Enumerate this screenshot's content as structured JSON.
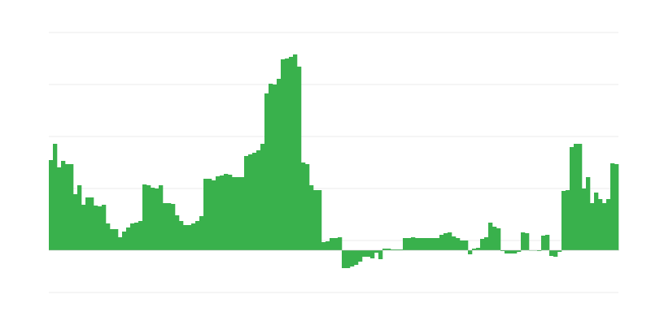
{
  "chart_data": {
    "type": "bar",
    "title": "",
    "xlabel": "",
    "ylabel": "",
    "grid": true,
    "ylim": [
      -52,
      268
    ],
    "gridlines": [
      -52,
      12,
      76,
      140,
      204,
      268
    ],
    "color": "#39b14c",
    "grid_color": "#ebebeb",
    "values": [
      111,
      131,
      102,
      110,
      106,
      106,
      69,
      80,
      56,
      65,
      65,
      55,
      54,
      56,
      33,
      26,
      26,
      16,
      23,
      28,
      33,
      34,
      36,
      81,
      80,
      77,
      76,
      80,
      58,
      58,
      57,
      43,
      36,
      31,
      31,
      33,
      36,
      42,
      88,
      88,
      86,
      91,
      92,
      94,
      93,
      90,
      90,
      90,
      116,
      118,
      120,
      123,
      131,
      193,
      205,
      204,
      211,
      235,
      236,
      238,
      241,
      226,
      108,
      106,
      80,
      74,
      74,
      10,
      11,
      15,
      15,
      16,
      -22,
      -22,
      -20,
      -18,
      -14,
      -8,
      -8,
      -10,
      -3,
      -11,
      2,
      2,
      1,
      1,
      1,
      15,
      15,
      16,
      15,
      15,
      15,
      15,
      15,
      15,
      19,
      21,
      22,
      17,
      15,
      12,
      12,
      -5,
      2,
      3,
      14,
      16,
      34,
      29,
      27,
      -1,
      -4,
      -4,
      -4,
      -2,
      22,
      21,
      0,
      0,
      -1,
      18,
      19,
      -7,
      -8,
      -2,
      73,
      74,
      127,
      131,
      131,
      76,
      90,
      58,
      71,
      63,
      58,
      63,
      107,
      106
    ]
  }
}
